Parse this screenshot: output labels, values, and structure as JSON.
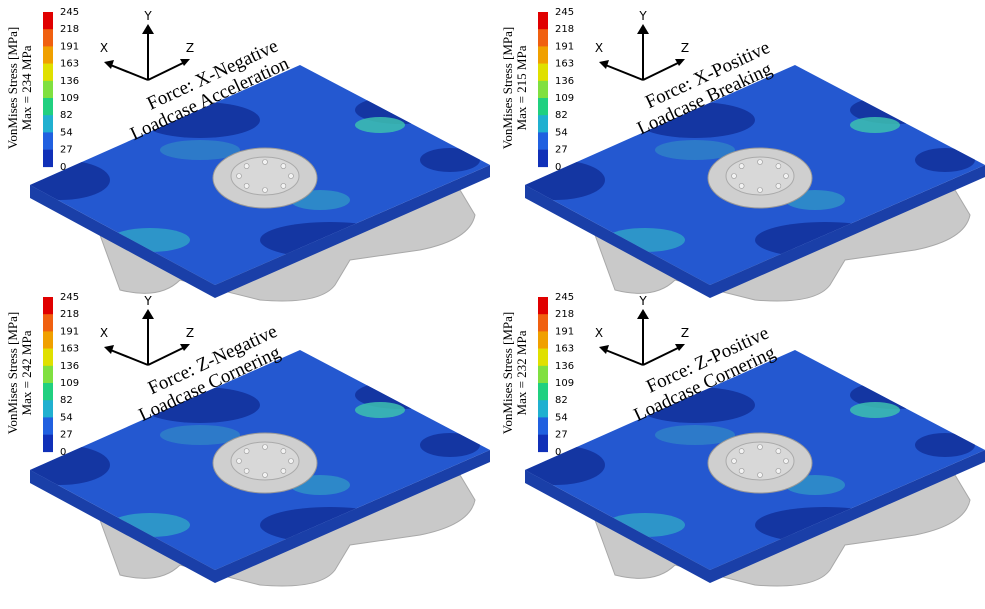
{
  "panels": [
    {
      "colorbar_title": "VonMises Stress [MPa]",
      "max_label": "Max = 234 MPa",
      "colorbar_ticks": [
        245,
        218,
        191,
        163,
        136,
        109,
        82,
        54,
        27,
        0
      ],
      "axes": {
        "x": "X",
        "y": "Y",
        "z": "Z"
      },
      "force": "Force: X-Negative",
      "loadcase": "Loadcase Acceleration"
    },
    {
      "colorbar_title": "VonMises Stress [MPa]",
      "max_label": "Max = 215 MPa",
      "colorbar_ticks": [
        245,
        218,
        191,
        163,
        136,
        109,
        82,
        54,
        27,
        0
      ],
      "axes": {
        "x": "X",
        "y": "Y",
        "z": "Z"
      },
      "force": "Force: X-Positive",
      "loadcase": "Loadcase Breaking"
    },
    {
      "colorbar_title": "VonMises Stress [MPa]",
      "max_label": "Max = 242 MPa",
      "colorbar_ticks": [
        245,
        218,
        191,
        163,
        136,
        109,
        82,
        54,
        27,
        0
      ],
      "axes": {
        "x": "X",
        "y": "Y",
        "z": "Z"
      },
      "force": "Force: Z-Negative",
      "loadcase": "Loadcase Cornering"
    },
    {
      "colorbar_title": "VonMises Stress [MPa]",
      "max_label": "Max = 232 MPa",
      "colorbar_ticks": [
        245,
        218,
        191,
        163,
        136,
        109,
        82,
        54,
        27,
        0
      ],
      "axes": {
        "x": "X",
        "y": "Y",
        "z": "Z"
      },
      "force": "Force: Z-Positive",
      "loadcase": "Loadcase Cornering"
    }
  ]
}
